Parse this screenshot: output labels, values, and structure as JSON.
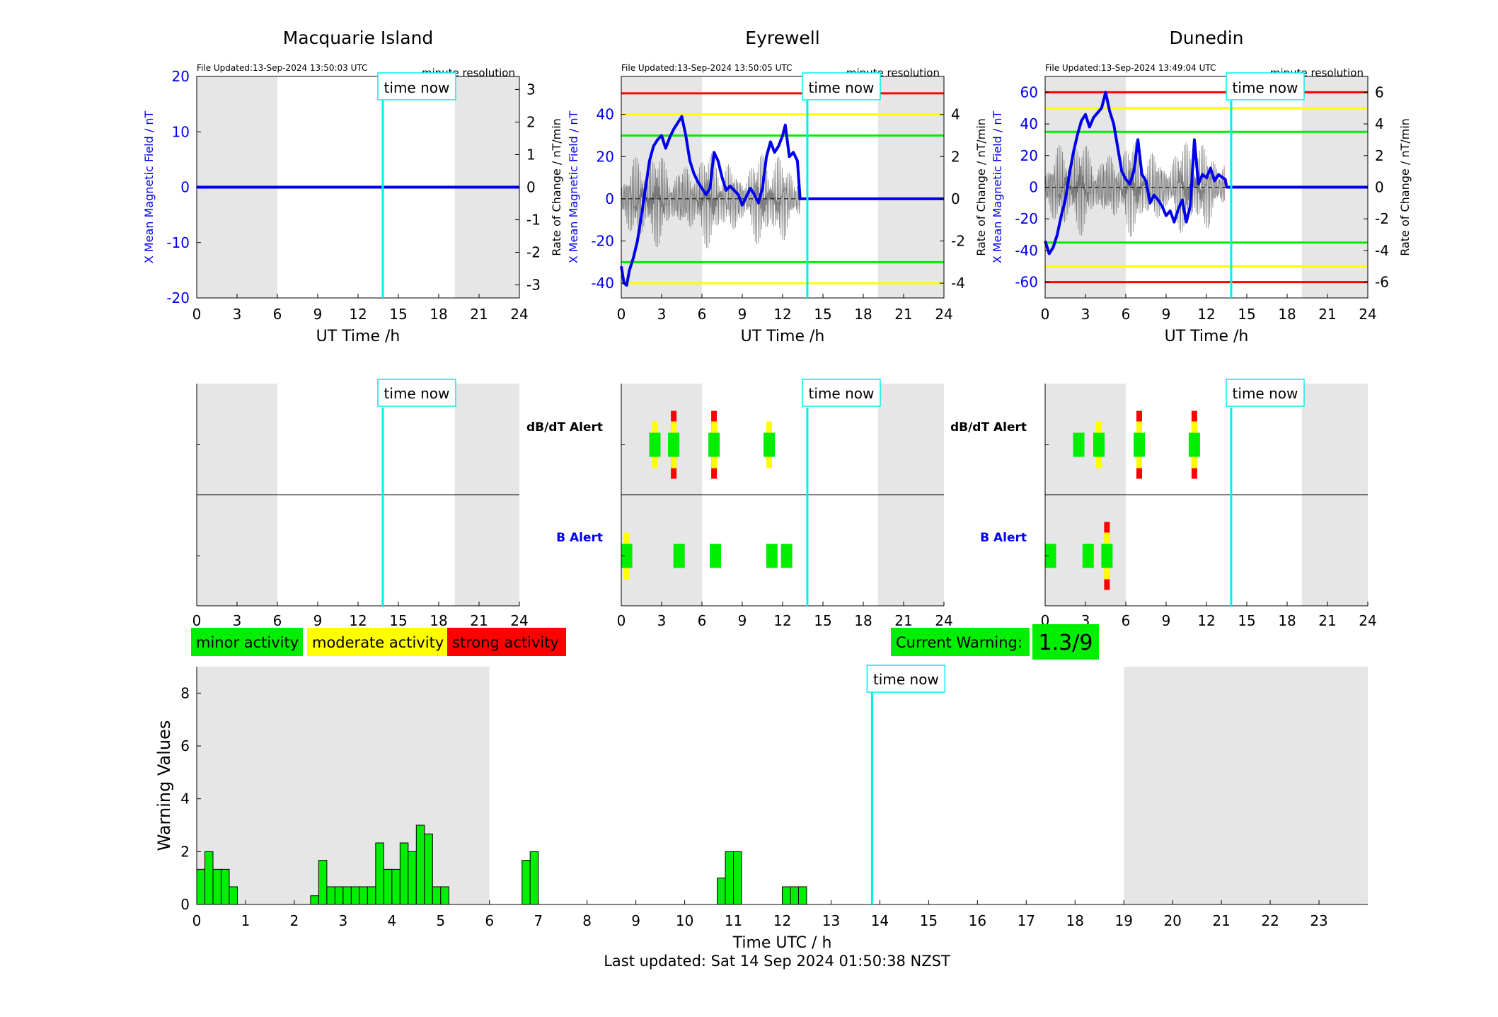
{
  "colors": {
    "minor": "#00ee00",
    "moderate": "#ffff00",
    "strong": "#ff0000",
    "field": "#0000ee",
    "time_now": "#00eeee",
    "night": "#e6e6e6",
    "rate": "#555555"
  },
  "time_now_label": "time now",
  "time_now_hour": 13.84,
  "legend": {
    "minor": "minor activity",
    "moderate": "moderate activity",
    "strong": "strong activity"
  },
  "current_warning": {
    "label": "Current Warning:",
    "value": "1.3/9"
  },
  "last_updated": "Last updated: Sat 14 Sep 2024 01:50:38 NZST",
  "alert_labels": {
    "dbdt": "dB/dT Alert",
    "b": "B Alert"
  },
  "stations": [
    {
      "name": "Macquarie Island",
      "file_updated": "File Updated:13-Sep-2024 13:50:03 UTC",
      "resolution": "minute resolution",
      "ylabel": "X Mean Magnetic Field / nT",
      "y2label": "Rate of Change / nT/min",
      "xlabel": "UT Time /h",
      "ylim": [
        -20,
        20
      ],
      "yticks": [
        -20,
        -10,
        0,
        10,
        20
      ],
      "y2lim": [
        -3.4,
        3.4
      ],
      "y2ticks": [
        -3,
        -2,
        -1,
        0,
        1,
        2,
        3
      ],
      "thresholds": [],
      "night": [
        [
          0,
          6
        ],
        [
          19.2,
          24
        ]
      ],
      "field_series": [
        [
          0,
          0
        ],
        [
          24,
          0
        ]
      ],
      "dbdt_alerts": [],
      "b_alerts": []
    },
    {
      "name": "Eyrewell",
      "file_updated": "File Updated:13-Sep-2024 13:50:05 UTC",
      "resolution": "minute resolution",
      "ylabel": "X Mean Magnetic Field / nT",
      "y2label": "Rate of Change / nT/min",
      "xlabel": "UT Time /h",
      "ylim": [
        -47,
        58
      ],
      "yticks": [
        -40,
        -20,
        0,
        20,
        40
      ],
      "y2lim": [
        -4.7,
        5.8
      ],
      "y2ticks": [
        -4,
        -2,
        0,
        2,
        4
      ],
      "thresholds": [
        {
          "value": 50,
          "level": "strong"
        },
        {
          "value": 40,
          "level": "moderate"
        },
        {
          "value": 30,
          "level": "minor"
        },
        {
          "value": -30,
          "level": "minor"
        },
        {
          "value": -40,
          "level": "moderate"
        }
      ],
      "night": [
        [
          0,
          6
        ],
        [
          19.1,
          24
        ]
      ],
      "field_series": [
        [
          0,
          -32
        ],
        [
          0.2,
          -40
        ],
        [
          0.4,
          -41
        ],
        [
          0.6,
          -34
        ],
        [
          0.9,
          -28
        ],
        [
          1.2,
          -20
        ],
        [
          1.5,
          -8
        ],
        [
          1.8,
          5
        ],
        [
          2.1,
          18
        ],
        [
          2.4,
          25
        ],
        [
          2.7,
          28
        ],
        [
          3.0,
          30
        ],
        [
          3.3,
          24
        ],
        [
          3.6,
          29
        ],
        [
          3.9,
          33
        ],
        [
          4.2,
          36
        ],
        [
          4.5,
          39
        ],
        [
          4.8,
          30
        ],
        [
          5.1,
          18
        ],
        [
          5.4,
          12
        ],
        [
          5.7,
          8
        ],
        [
          6.0,
          5
        ],
        [
          6.3,
          2
        ],
        [
          6.6,
          5
        ],
        [
          6.9,
          22
        ],
        [
          7.2,
          18
        ],
        [
          7.5,
          10
        ],
        [
          7.8,
          4
        ],
        [
          8.1,
          6
        ],
        [
          8.4,
          4
        ],
        [
          8.7,
          2
        ],
        [
          9.0,
          -3
        ],
        [
          9.3,
          1
        ],
        [
          9.6,
          5
        ],
        [
          9.9,
          2
        ],
        [
          10.2,
          -2
        ],
        [
          10.5,
          5
        ],
        [
          10.8,
          20
        ],
        [
          11.1,
          27
        ],
        [
          11.4,
          22
        ],
        [
          11.7,
          25
        ],
        [
          12.0,
          30
        ],
        [
          12.2,
          35
        ],
        [
          12.5,
          20
        ],
        [
          12.8,
          22
        ],
        [
          13.1,
          18
        ],
        [
          13.3,
          0
        ],
        [
          14,
          0
        ],
        [
          24,
          0
        ]
      ],
      "rate_band": [
        [
          0,
          2.4
        ],
        [
          13.3,
          1.2
        ]
      ],
      "dbdt_alerts": [
        {
          "hour": 2.5,
          "level": "moderate"
        },
        {
          "hour": 3.9,
          "level": "strong"
        },
        {
          "hour": 6.9,
          "level": "strong"
        },
        {
          "hour": 11.0,
          "level": "moderate"
        }
      ],
      "b_alerts": [
        {
          "hour": 0.4,
          "level": "moderate"
        },
        {
          "hour": 4.3,
          "level": "minor"
        },
        {
          "hour": 7.0,
          "level": "minor"
        },
        {
          "hour": 11.2,
          "level": "minor"
        },
        {
          "hour": 12.3,
          "level": "minor"
        }
      ]
    },
    {
      "name": "Dunedin",
      "file_updated": "File Updated:13-Sep-2024 13:49:04 UTC",
      "resolution": "minute resolution",
      "ylabel": "X Mean Magnetic Field / nT",
      "y2label": "Rate of Change / nT/min",
      "xlabel": "UT Time /h",
      "ylim": [
        -70,
        70
      ],
      "yticks": [
        -60,
        -40,
        -20,
        0,
        20,
        40,
        60
      ],
      "y2lim": [
        -7,
        7
      ],
      "y2ticks": [
        -6,
        -4,
        -2,
        0,
        2,
        4,
        6
      ],
      "thresholds": [
        {
          "value": 60,
          "level": "strong"
        },
        {
          "value": 50,
          "level": "moderate"
        },
        {
          "value": 35,
          "level": "minor"
        },
        {
          "value": -35,
          "level": "minor"
        },
        {
          "value": -50,
          "level": "moderate"
        },
        {
          "value": -60,
          "level": "strong"
        }
      ],
      "night": [
        [
          0,
          6
        ],
        [
          19.1,
          24
        ]
      ],
      "field_series": [
        [
          0,
          -34
        ],
        [
          0.3,
          -42
        ],
        [
          0.6,
          -38
        ],
        [
          0.9,
          -30
        ],
        [
          1.2,
          -18
        ],
        [
          1.5,
          -8
        ],
        [
          1.8,
          8
        ],
        [
          2.1,
          22
        ],
        [
          2.4,
          33
        ],
        [
          2.7,
          42
        ],
        [
          3.0,
          46
        ],
        [
          3.3,
          38
        ],
        [
          3.6,
          44
        ],
        [
          3.9,
          47
        ],
        [
          4.2,
          50
        ],
        [
          4.5,
          60
        ],
        [
          4.8,
          48
        ],
        [
          5.1,
          40
        ],
        [
          5.4,
          25
        ],
        [
          5.7,
          10
        ],
        [
          6.0,
          5
        ],
        [
          6.3,
          2
        ],
        [
          6.6,
          10
        ],
        [
          6.9,
          30
        ],
        [
          7.2,
          8
        ],
        [
          7.5,
          4
        ],
        [
          7.8,
          -10
        ],
        [
          8.1,
          -5
        ],
        [
          8.4,
          -8
        ],
        [
          8.7,
          -12
        ],
        [
          9.0,
          -18
        ],
        [
          9.3,
          -15
        ],
        [
          9.6,
          -22
        ],
        [
          9.9,
          -14
        ],
        [
          10.2,
          -8
        ],
        [
          10.5,
          -22
        ],
        [
          10.8,
          -12
        ],
        [
          11.1,
          30
        ],
        [
          11.4,
          2
        ],
        [
          11.7,
          8
        ],
        [
          12.0,
          6
        ],
        [
          12.3,
          12
        ],
        [
          12.6,
          4
        ],
        [
          12.9,
          8
        ],
        [
          13.2,
          6
        ],
        [
          13.4,
          5
        ],
        [
          13.5,
          0
        ],
        [
          24,
          0
        ]
      ],
      "rate_band": [
        [
          0,
          3.2
        ],
        [
          13.4,
          1.2
        ]
      ],
      "dbdt_alerts": [
        {
          "hour": 2.5,
          "level": "minor"
        },
        {
          "hour": 4.0,
          "level": "moderate"
        },
        {
          "hour": 7.0,
          "level": "strong"
        },
        {
          "hour": 11.1,
          "level": "strong"
        }
      ],
      "b_alerts": [
        {
          "hour": 0.4,
          "level": "minor"
        },
        {
          "hour": 3.2,
          "level": "minor"
        },
        {
          "hour": 4.6,
          "level": "strong"
        }
      ]
    }
  ],
  "chart_data": {
    "type": "bar",
    "xlabel": "Time UTC / h",
    "ylabel": "Warning Values",
    "xlim": [
      0,
      24
    ],
    "ylim": [
      0,
      9
    ],
    "yticks": [
      0,
      2,
      4,
      6,
      8
    ],
    "xticks": [
      0,
      1,
      2,
      3,
      4,
      5,
      6,
      7,
      8,
      9,
      10,
      11,
      12,
      13,
      14,
      15,
      16,
      17,
      18,
      19,
      20,
      21,
      22,
      23
    ],
    "night": [
      [
        0,
        6
      ],
      [
        19,
        24
      ]
    ],
    "bin_width": 0.1667,
    "bars": [
      {
        "x": 0.0,
        "value": 1.33
      },
      {
        "x": 0.167,
        "value": 2.0
      },
      {
        "x": 0.333,
        "value": 1.33
      },
      {
        "x": 0.5,
        "value": 1.33
      },
      {
        "x": 0.667,
        "value": 0.67
      },
      {
        "x": 2.333,
        "value": 0.33
      },
      {
        "x": 2.5,
        "value": 1.67
      },
      {
        "x": 2.667,
        "value": 0.67
      },
      {
        "x": 2.833,
        "value": 0.67
      },
      {
        "x": 3.0,
        "value": 0.67
      },
      {
        "x": 3.167,
        "value": 0.67
      },
      {
        "x": 3.333,
        "value": 0.67
      },
      {
        "x": 3.5,
        "value": 0.67
      },
      {
        "x": 3.667,
        "value": 2.33
      },
      {
        "x": 3.833,
        "value": 1.33
      },
      {
        "x": 4.0,
        "value": 1.33
      },
      {
        "x": 4.167,
        "value": 2.33
      },
      {
        "x": 4.333,
        "value": 2.0
      },
      {
        "x": 4.5,
        "value": 3.0
      },
      {
        "x": 4.667,
        "value": 2.67
      },
      {
        "x": 4.833,
        "value": 0.67
      },
      {
        "x": 5.0,
        "value": 0.67
      },
      {
        "x": 6.667,
        "value": 1.67
      },
      {
        "x": 6.833,
        "value": 2.0
      },
      {
        "x": 10.667,
        "value": 1.0
      },
      {
        "x": 10.833,
        "value": 2.0
      },
      {
        "x": 11.0,
        "value": 2.0
      },
      {
        "x": 12.0,
        "value": 0.67
      },
      {
        "x": 12.167,
        "value": 0.67
      },
      {
        "x": 12.333,
        "value": 0.67
      }
    ]
  }
}
